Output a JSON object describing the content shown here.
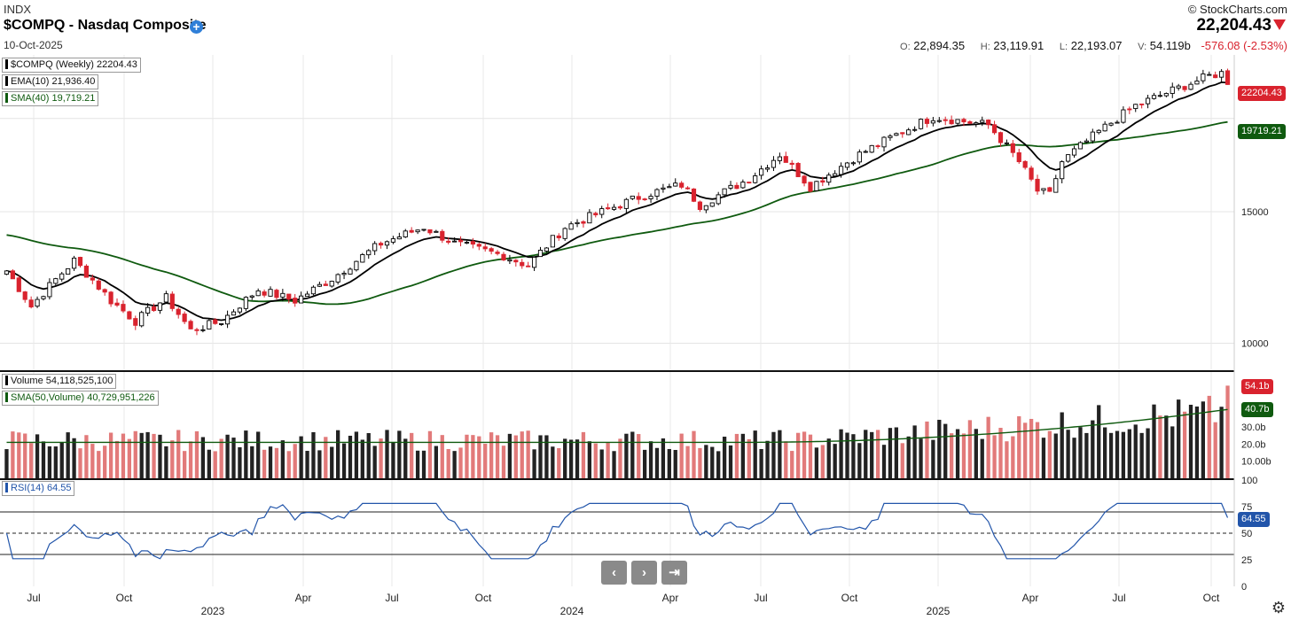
{
  "header": {
    "exchange": "INDX",
    "title": "$COMPQ - Nasdaq Composite",
    "date": "10-Oct-2025",
    "brand": "© StockCharts.com",
    "last": "22,204.43",
    "open_label": "O:",
    "open": "22,894.35",
    "high_label": "H:",
    "high": "23,119.91",
    "low_label": "L:",
    "low": "22,193.07",
    "vol_label": "V:",
    "vol": "54.119b",
    "change": "-576.08 (-2.53%)"
  },
  "legend": {
    "price": "$COMPQ (Weekly) 22204.43",
    "ema": "EMA(10) 21,936.40",
    "sma": "SMA(40) 19,719.21",
    "volume": "Volume 54,118,525,100",
    "vol_sma": "SMA(50,Volume) 40,729,951,226",
    "rsi": "RSI(14) 64.55"
  },
  "tags": {
    "price": "22204.43",
    "sma": "19719.21",
    "volume": "54.1b",
    "vol_sma": "40.7b",
    "rsi": "64.55"
  },
  "colors": {
    "up": "#000000",
    "down": "#d9232e",
    "vol_down": "#e27a7a",
    "sma": "#0f5a0f",
    "rsi": "#2255aa",
    "ema": "#000000"
  },
  "nav": {
    "prev": "‹",
    "next": "›",
    "end": "⇥"
  },
  "chart_data": {
    "type": "candlestick",
    "timeframe": "Weekly",
    "price_axis": {
      "scale": "log",
      "ticks": [
        10000,
        15000,
        20000
      ],
      "tick_labels": [
        "10000",
        "15000",
        ""
      ],
      "range": [
        9200,
        23800
      ]
    },
    "volume_axis": {
      "ticks": [
        "30.0b",
        "20.0b",
        "10.00b"
      ]
    },
    "rsi_axis": {
      "ticks": [
        0,
        25,
        50,
        75,
        100
      ],
      "overbought": 70,
      "oversold": 30
    },
    "x_labels": [
      "Jul",
      "Oct",
      "2023",
      "Apr",
      "Jul",
      "Oct",
      "2024",
      "Apr",
      "Jul",
      "Oct",
      "2025",
      "Apr",
      "Jul",
      "Oct"
    ],
    "waypoints": [
      {
        "week": 0,
        "close": 12500
      },
      {
        "week": 4,
        "close": 11200
      },
      {
        "week": 11,
        "close": 12900
      },
      {
        "week": 17,
        "close": 11400
      },
      {
        "week": 21,
        "close": 10700
      },
      {
        "week": 26,
        "close": 11500
      },
      {
        "week": 30,
        "close": 10400
      },
      {
        "week": 35,
        "close": 10700
      },
      {
        "week": 41,
        "close": 11800
      },
      {
        "week": 47,
        "close": 11400
      },
      {
        "week": 53,
        "close": 12200
      },
      {
        "week": 61,
        "close": 13600
      },
      {
        "week": 68,
        "close": 14300
      },
      {
        "week": 73,
        "close": 13600
      },
      {
        "week": 81,
        "close": 13100
      },
      {
        "week": 85,
        "close": 12700
      },
      {
        "week": 91,
        "close": 14300
      },
      {
        "week": 98,
        "close": 15100
      },
      {
        "week": 104,
        "close": 15800
      },
      {
        "week": 110,
        "close": 16300
      },
      {
        "week": 113,
        "close": 15300
      },
      {
        "week": 121,
        "close": 16600
      },
      {
        "week": 126,
        "close": 17900
      },
      {
        "week": 131,
        "close": 16200
      },
      {
        "week": 139,
        "close": 17900
      },
      {
        "week": 146,
        "close": 19200
      },
      {
        "week": 151,
        "close": 20100
      },
      {
        "week": 160,
        "close": 19600
      },
      {
        "week": 165,
        "close": 17500
      },
      {
        "week": 168,
        "close": 16000
      },
      {
        "week": 170,
        "close": 15800
      },
      {
        "week": 172,
        "close": 17500
      },
      {
        "week": 178,
        "close": 19200
      },
      {
        "week": 184,
        "close": 20800
      },
      {
        "week": 190,
        "close": 21800
      },
      {
        "week": 196,
        "close": 22800
      },
      {
        "week": 198,
        "close": 23000
      },
      {
        "week": 199,
        "close": 22204
      }
    ],
    "total_weeks": 200,
    "volume_range_b": [
      0,
      60
    ],
    "volume_sma_b": [
      21,
      40.7
    ],
    "rsi_last": 64.55
  }
}
